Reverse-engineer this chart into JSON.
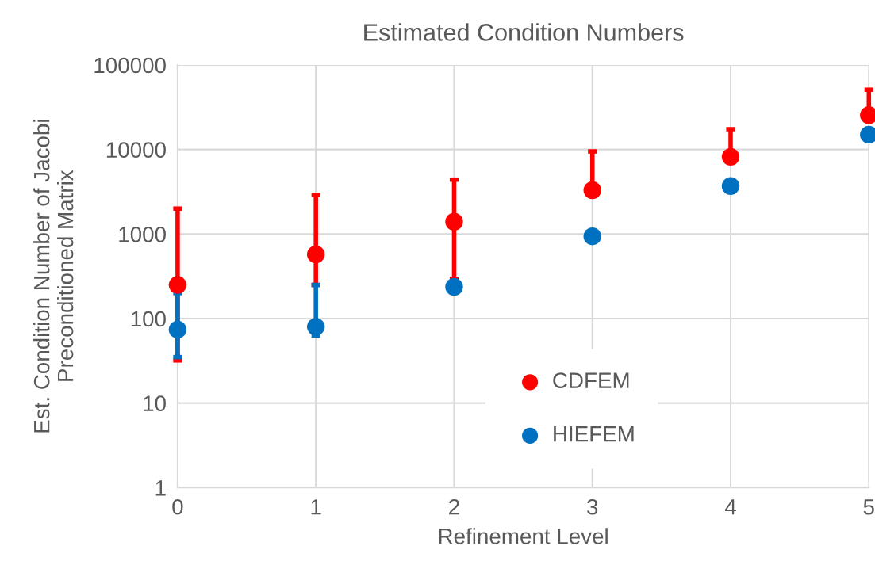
{
  "chart_data": {
    "type": "scatter",
    "title": "Estimated Condition Numbers",
    "xlabel": "Refinement Level",
    "ylabel": "Est. Condition Number of Jacobi\nPreconditioned Matrix",
    "x": [
      0,
      1,
      2,
      3,
      4,
      5
    ],
    "series": [
      {
        "name": "CDFEM",
        "color": "#ff0000",
        "values": [
          250,
          575,
          1400,
          3300,
          8200,
          25500
        ],
        "errors": [
          [
            32,
            2000
          ],
          [
            250,
            2900
          ],
          [
            295,
            4400
          ],
          [
            3300,
            9500
          ],
          [
            8200,
            17400
          ],
          [
            25500,
            51000
          ]
        ]
      },
      {
        "name": "HIEFEM",
        "color": "#0070c0",
        "values": [
          74,
          80,
          237,
          940,
          3700,
          15000
        ],
        "errors": [
          [
            35,
            200
          ],
          [
            63,
            250
          ],
          null,
          null,
          null,
          null
        ]
      }
    ],
    "log": "y",
    "xlim": [
      0,
      5
    ],
    "xticks": [
      0,
      1,
      2,
      3,
      4,
      5
    ],
    "ylim": [
      1,
      100000
    ],
    "yticks": [
      1,
      10,
      100,
      1000,
      10000,
      100000
    ],
    "grid": true,
    "legend": "bottom",
    "marker": "circle"
  }
}
